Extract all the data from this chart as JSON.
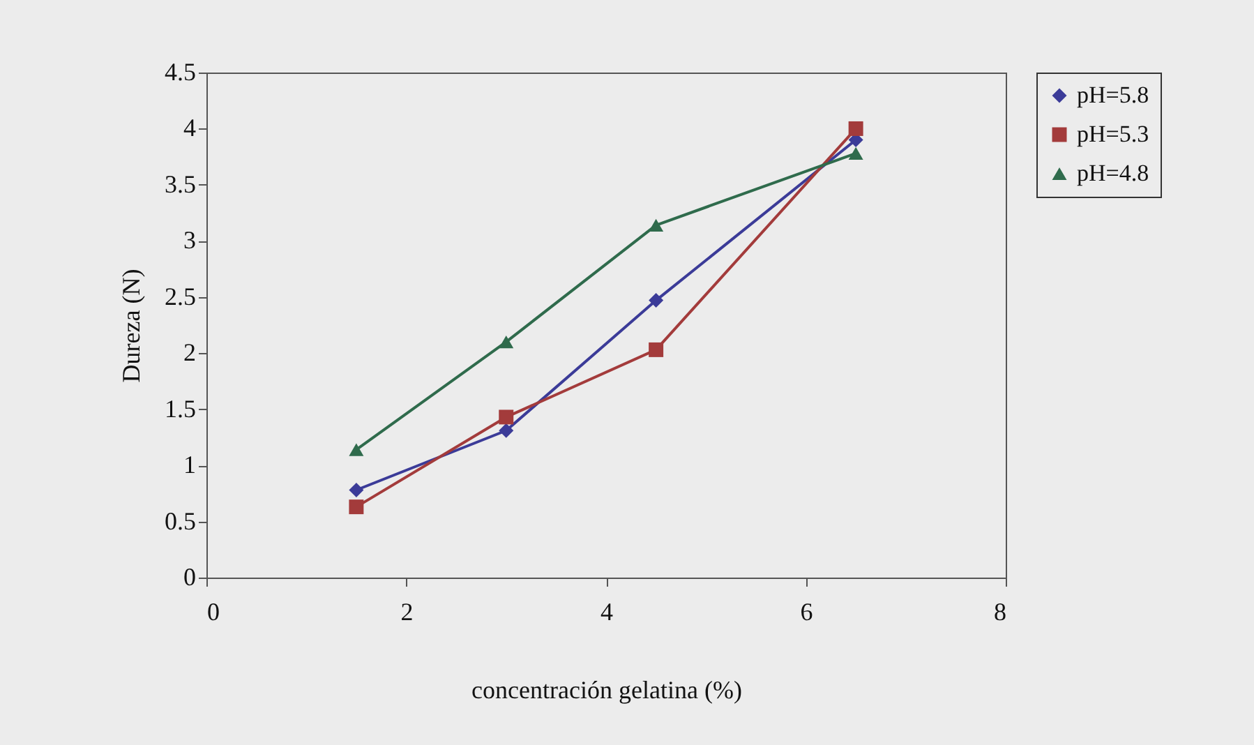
{
  "chart_data": {
    "type": "line",
    "xlabel": "concentración gelatina (%)",
    "ylabel": "Dureza (N)",
    "x": [
      1.5,
      3,
      4.5,
      6.5
    ],
    "series": [
      {
        "name": "pH=5.8",
        "color": "#3b3b98",
        "marker": "diamond",
        "values": [
          0.78,
          1.31,
          2.47,
          3.9
        ]
      },
      {
        "name": "pH=5.3",
        "color": "#a33b3b",
        "marker": "square",
        "values": [
          0.63,
          1.43,
          2.03,
          4.0
        ]
      },
      {
        "name": "pH=4.8",
        "color": "#2f6b4c",
        "marker": "triangle",
        "values": [
          1.14,
          2.1,
          3.14,
          3.78
        ]
      }
    ],
    "xlim": [
      0,
      8
    ],
    "xticks": [
      0,
      2,
      4,
      6,
      8
    ],
    "ylim": [
      0,
      4.5
    ],
    "yticks": [
      0,
      0.5,
      1,
      1.5,
      2,
      2.5,
      3,
      3.5,
      4,
      4.5
    ],
    "grid": false,
    "legend": "right",
    "line_style": "solid"
  }
}
